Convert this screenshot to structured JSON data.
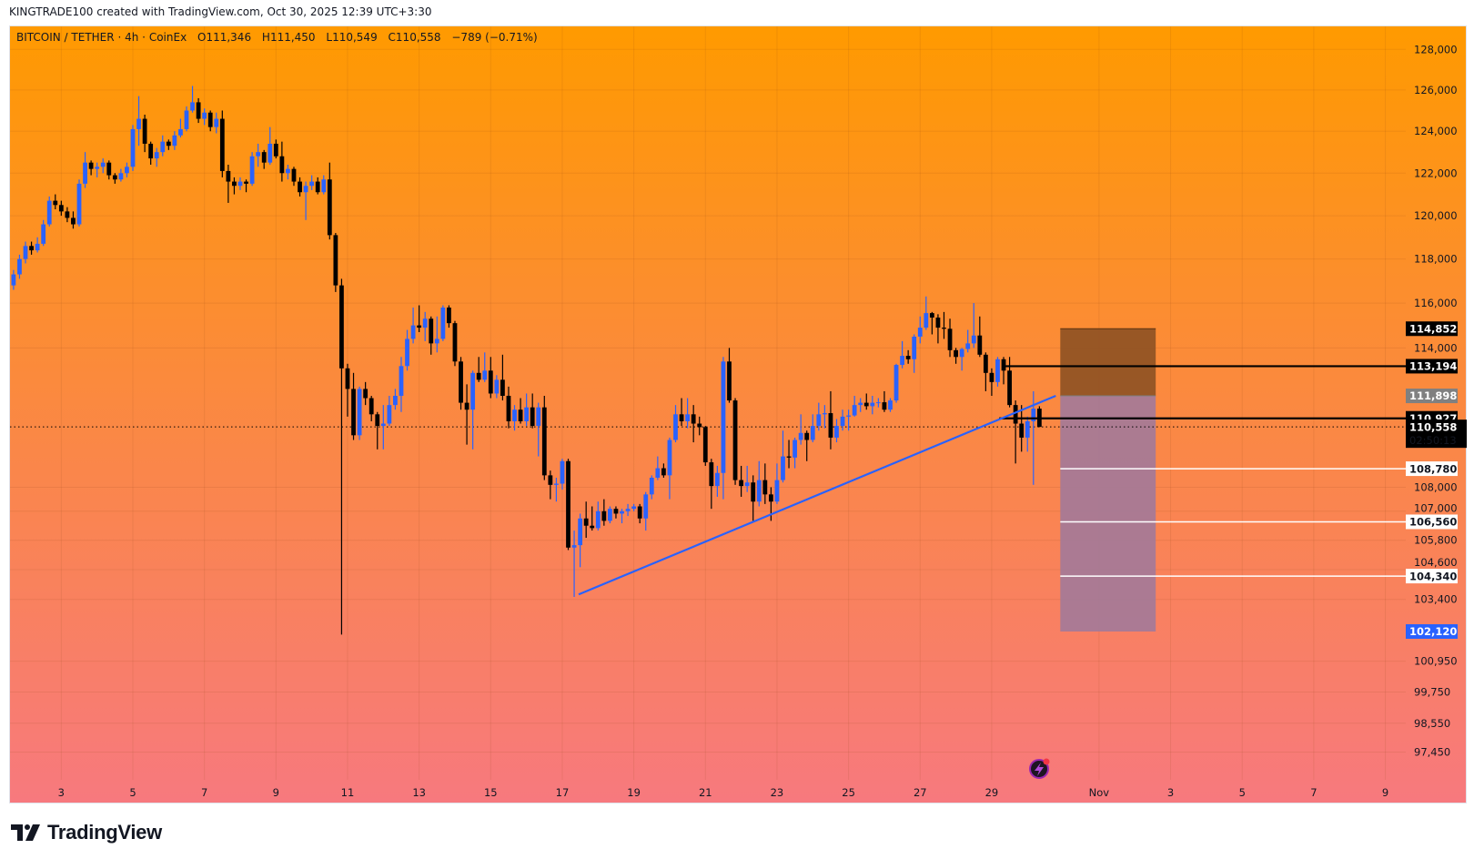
{
  "header": {
    "credit": "KINGTRADE100 created with TradingView.com, Oct 30, 2025 12:39 UTC+3:30"
  },
  "legend": {
    "symbol": "BITCOIN / TETHER",
    "interval": "4h",
    "exchange": "CoinEx",
    "separator": "·",
    "open_label": "O",
    "open": "111,346",
    "high_label": "H",
    "high": "111,450",
    "low_label": "L",
    "low": "110,549",
    "close_label": "C",
    "close": "110,558",
    "change": "−789 (−0.71%)"
  },
  "colors": {
    "up": "#2962ff",
    "down": "#000000",
    "background_top": "#ff9a00",
    "background_bottom": "#f7797e",
    "trendline": "#2962ff",
    "stop_zone": "#8f5224",
    "target_zone": "#a47a98",
    "label_dark": "#000000",
    "label_gray": "#808080",
    "label_light": "#ffffff",
    "label_blue": "#2962ff",
    "alert_icon": "#9c27b0"
  },
  "chart_data": {
    "type": "candlestick",
    "title": "BITCOIN / TETHER · 4h · CoinEx",
    "y_scale": "log",
    "ylim": [
      96500,
      129000
    ],
    "grid": true,
    "first_candle_time": "2025-10-01T16:00",
    "interval_hours": 4,
    "candle_format": [
      "open",
      "high",
      "low",
      "close"
    ],
    "candles": [
      [
        116800,
        117500,
        116600,
        117300
      ],
      [
        117300,
        118200,
        117100,
        118000
      ],
      [
        118000,
        118800,
        117800,
        118600
      ],
      [
        118600,
        118800,
        118200,
        118400
      ],
      [
        118400,
        119000,
        118300,
        118700
      ],
      [
        118700,
        119800,
        118600,
        119600
      ],
      [
        119600,
        120900,
        119500,
        120700
      ],
      [
        120700,
        121000,
        120300,
        120500
      ],
      [
        120500,
        120700,
        120000,
        120200
      ],
      [
        120200,
        120400,
        119700,
        119900
      ],
      [
        119900,
        120200,
        119400,
        119600
      ],
      [
        119600,
        121700,
        119500,
        121500
      ],
      [
        121500,
        123000,
        121300,
        122500
      ],
      [
        122500,
        122600,
        121900,
        122200
      ],
      [
        122200,
        122500,
        121800,
        122300
      ],
      [
        122300,
        122700,
        122000,
        122500
      ],
      [
        122500,
        122600,
        121700,
        121900
      ],
      [
        121900,
        122000,
        121500,
        121700
      ],
      [
        121700,
        122200,
        121600,
        122000
      ],
      [
        122000,
        122500,
        121800,
        122300
      ],
      [
        122300,
        124300,
        122100,
        124100
      ],
      [
        124100,
        125700,
        123300,
        124600
      ],
      [
        124600,
        124800,
        123000,
        123400
      ],
      [
        123400,
        123500,
        122400,
        122700
      ],
      [
        122700,
        123200,
        122300,
        123000
      ],
      [
        123000,
        123800,
        122800,
        123500
      ],
      [
        123500,
        123600,
        123100,
        123300
      ],
      [
        123300,
        124000,
        123100,
        123800
      ],
      [
        123800,
        124600,
        123700,
        124100
      ],
      [
        124100,
        125200,
        124000,
        125000
      ],
      [
        125000,
        126200,
        124900,
        125400
      ],
      [
        125400,
        125600,
        124400,
        124600
      ],
      [
        124600,
        125100,
        124300,
        124900
      ],
      [
        124900,
        125000,
        124000,
        124200
      ],
      [
        124200,
        124900,
        123900,
        124600
      ],
      [
        124600,
        125000,
        121800,
        122100
      ],
      [
        122100,
        122400,
        120600,
        121600
      ],
      [
        121600,
        121800,
        121000,
        121400
      ],
      [
        121400,
        121800,
        121200,
        121600
      ],
      [
        121600,
        121700,
        121100,
        121500
      ],
      [
        121500,
        123000,
        121400,
        122800
      ],
      [
        122800,
        123400,
        122300,
        123000
      ],
      [
        123000,
        123100,
        122200,
        122500
      ],
      [
        122500,
        124200,
        122400,
        123400
      ],
      [
        123400,
        123600,
        122700,
        122800
      ],
      [
        122800,
        123500,
        121600,
        122000
      ],
      [
        122000,
        122400,
        121700,
        122200
      ],
      [
        122200,
        122300,
        121400,
        121600
      ],
      [
        121600,
        121800,
        120900,
        121100
      ],
      [
        121100,
        121600,
        119800,
        121400
      ],
      [
        121400,
        121900,
        121200,
        121600
      ],
      [
        121600,
        121800,
        121000,
        121100
      ],
      [
        121100,
        121900,
        121000,
        121700
      ],
      [
        121700,
        122500,
        118900,
        119100
      ],
      [
        119100,
        119200,
        116500,
        116800
      ],
      [
        116800,
        117100,
        102000,
        113100
      ],
      [
        113100,
        113300,
        111000,
        112200
      ],
      [
        112200,
        112900,
        110000,
        110200
      ],
      [
        110200,
        112300,
        110000,
        112200
      ],
      [
        112200,
        112500,
        111500,
        111800
      ],
      [
        111800,
        111900,
        110800,
        111100
      ],
      [
        111100,
        111200,
        109600,
        110600
      ],
      [
        110600,
        111500,
        109600,
        110700
      ],
      [
        110700,
        111900,
        110600,
        111500
      ],
      [
        111500,
        112200,
        111300,
        111900
      ],
      [
        111900,
        113600,
        111200,
        113200
      ],
      [
        113200,
        114800,
        113000,
        114400
      ],
      [
        114400,
        115800,
        114200,
        115000
      ],
      [
        115000,
        115900,
        114700,
        114900
      ],
      [
        114900,
        115600,
        114300,
        115300
      ],
      [
        115300,
        115400,
        113700,
        114200
      ],
      [
        114200,
        115400,
        113800,
        114400
      ],
      [
        114400,
        115900,
        114300,
        115800
      ],
      [
        115800,
        115900,
        114900,
        115100
      ],
      [
        115100,
        115200,
        113200,
        113400
      ],
      [
        113400,
        113600,
        111300,
        111600
      ],
      [
        111600,
        112400,
        109800,
        111300
      ],
      [
        111300,
        113000,
        109600,
        112900
      ],
      [
        112900,
        113600,
        112500,
        112600
      ],
      [
        112600,
        113800,
        112500,
        113000
      ],
      [
        113000,
        113600,
        111800,
        112000
      ],
      [
        112000,
        112800,
        111800,
        112600
      ],
      [
        112600,
        113700,
        111700,
        111900
      ],
      [
        111900,
        112300,
        110500,
        110800
      ],
      [
        110800,
        111500,
        110400,
        111300
      ],
      [
        111300,
        111800,
        110700,
        110800
      ],
      [
        110800,
        112000,
        110600,
        111400
      ],
      [
        111400,
        112000,
        110500,
        110600
      ],
      [
        110600,
        111600,
        109300,
        111400
      ],
      [
        111400,
        111900,
        108300,
        108500
      ],
      [
        108500,
        108700,
        107500,
        108100
      ],
      [
        108100,
        108400,
        107400,
        108150
      ],
      [
        108150,
        109200,
        107900,
        109100
      ],
      [
        109100,
        109200,
        105400,
        105500
      ],
      [
        105500,
        106200,
        103500,
        105600
      ],
      [
        105600,
        106900,
        104700,
        106700
      ],
      [
        106700,
        107400,
        105900,
        106400
      ],
      [
        106400,
        107200,
        106200,
        106300
      ],
      [
        106300,
        107400,
        106200,
        107000
      ],
      [
        107000,
        107500,
        106400,
        106600
      ],
      [
        106600,
        107200,
        106500,
        107100
      ],
      [
        107100,
        107200,
        106700,
        106900
      ],
      [
        106900,
        107100,
        106500,
        107000
      ],
      [
        107000,
        107300,
        106800,
        107100
      ],
      [
        107100,
        107300,
        107000,
        107200
      ],
      [
        107200,
        107300,
        106500,
        106700
      ],
      [
        106700,
        107800,
        106200,
        107700
      ],
      [
        107700,
        108500,
        107500,
        108400
      ],
      [
        108400,
        109300,
        108300,
        108800
      ],
      [
        108800,
        109000,
        108400,
        108500
      ],
      [
        108500,
        110100,
        107500,
        110000
      ],
      [
        110000,
        111500,
        109900,
        111100
      ],
      [
        111100,
        111800,
        110600,
        110800
      ],
      [
        110800,
        111800,
        110500,
        111100
      ],
      [
        111100,
        111500,
        109900,
        110700
      ],
      [
        110700,
        111000,
        110200,
        110550
      ],
      [
        110550,
        110600,
        108900,
        109050
      ],
      [
        109050,
        109200,
        107100,
        108050
      ],
      [
        108050,
        108900,
        107600,
        108600
      ],
      [
        108600,
        113600,
        107500,
        113400
      ],
      [
        113400,
        114000,
        111600,
        111700
      ],
      [
        111700,
        111800,
        108100,
        108300
      ],
      [
        108300,
        108900,
        107600,
        108050
      ],
      [
        108050,
        108900,
        107800,
        108200
      ],
      [
        108200,
        108500,
        106600,
        107400
      ],
      [
        107400,
        109100,
        107200,
        108300
      ],
      [
        108300,
        109000,
        107300,
        107700
      ],
      [
        107700,
        108000,
        106600,
        107400
      ],
      [
        107400,
        109000,
        107300,
        108300
      ],
      [
        108300,
        110400,
        108200,
        109300
      ],
      [
        109300,
        110000,
        108800,
        109250
      ],
      [
        109250,
        110100,
        108800,
        110000
      ],
      [
        110000,
        111100,
        109800,
        110300
      ],
      [
        110300,
        110400,
        109100,
        110000
      ],
      [
        110000,
        111100,
        109900,
        110600
      ],
      [
        110600,
        111600,
        110400,
        111100
      ],
      [
        111100,
        111500,
        110500,
        111150
      ],
      [
        111150,
        112100,
        109600,
        110100
      ],
      [
        110100,
        110900,
        109900,
        110600
      ],
      [
        110600,
        111300,
        110400,
        111000
      ],
      [
        111000,
        111300,
        110400,
        111050
      ],
      [
        111050,
        111900,
        111000,
        111500
      ],
      [
        111500,
        111800,
        111200,
        111600
      ],
      [
        111600,
        112000,
        111300,
        111450
      ],
      [
        111450,
        111900,
        111100,
        111600
      ],
      [
        111600,
        111800,
        111400,
        111620
      ],
      [
        111620,
        112100,
        111200,
        111300
      ],
      [
        111300,
        111800,
        111200,
        111700
      ],
      [
        111700,
        113300,
        111600,
        113250
      ],
      [
        113250,
        114300,
        113100,
        113650
      ],
      [
        113650,
        113900,
        113300,
        113500
      ],
      [
        113500,
        114600,
        112900,
        114500
      ],
      [
        114500,
        115400,
        114200,
        114900
      ],
      [
        114900,
        116300,
        114800,
        115550
      ],
      [
        115550,
        115600,
        114600,
        115350
      ],
      [
        115350,
        115500,
        114200,
        114900
      ],
      [
        114900,
        115600,
        114400,
        114850
      ],
      [
        114850,
        115300,
        113600,
        113900
      ],
      [
        113900,
        114000,
        113300,
        113600
      ],
      [
        113600,
        114000,
        113000,
        113950
      ],
      [
        113950,
        114800,
        113800,
        114200
      ],
      [
        114200,
        116000,
        114000,
        114550
      ],
      [
        114550,
        115400,
        113600,
        113700
      ],
      [
        113700,
        113800,
        112100,
        112900
      ],
      [
        112900,
        113100,
        111900,
        112500
      ],
      [
        112500,
        113600,
        112300,
        113500
      ],
      [
        113500,
        113600,
        112400,
        113000
      ],
      [
        113000,
        113600,
        111400,
        111500
      ],
      [
        111500,
        111700,
        109000,
        110700
      ],
      [
        110700,
        111500,
        109500,
        110100
      ],
      [
        110100,
        111000,
        109500,
        110800
      ],
      [
        110800,
        112100,
        108100,
        111346
      ],
      [
        111346,
        111450,
        110549,
        110558
      ]
    ],
    "y_ticks": [
      {
        "value": 128000,
        "label": "128,000"
      },
      {
        "value": 126000,
        "label": "126,000"
      },
      {
        "value": 124000,
        "label": "124,000"
      },
      {
        "value": 122000,
        "label": "122,000"
      },
      {
        "value": 120000,
        "label": "120,000"
      },
      {
        "value": 118000,
        "label": "118,000"
      },
      {
        "value": 116000,
        "label": "116,000"
      },
      {
        "value": 114000,
        "label": "114,000"
      },
      {
        "value": 108000,
        "label": "108,000"
      },
      {
        "value": 107000,
        "label": "107,000"
      },
      {
        "value": 105800,
        "label": "105,800"
      },
      {
        "value": 104600,
        "label": "104,600"
      },
      {
        "value": 103400,
        "label": "103,400"
      },
      {
        "value": 100950,
        "label": "100,950"
      },
      {
        "value": 99750,
        "label": "99,750"
      },
      {
        "value": 98550,
        "label": "98,550"
      },
      {
        "value": 97450,
        "label": "97,450"
      }
    ],
    "x_ticks": [
      {
        "date": "2025-10-03",
        "label": "3"
      },
      {
        "date": "2025-10-05",
        "label": "5"
      },
      {
        "date": "2025-10-07",
        "label": "7"
      },
      {
        "date": "2025-10-09",
        "label": "9"
      },
      {
        "date": "2025-10-11",
        "label": "11"
      },
      {
        "date": "2025-10-13",
        "label": "13"
      },
      {
        "date": "2025-10-15",
        "label": "15"
      },
      {
        "date": "2025-10-17",
        "label": "17"
      },
      {
        "date": "2025-10-19",
        "label": "19"
      },
      {
        "date": "2025-10-21",
        "label": "21"
      },
      {
        "date": "2025-10-23",
        "label": "23"
      },
      {
        "date": "2025-10-25",
        "label": "25"
      },
      {
        "date": "2025-10-27",
        "label": "27"
      },
      {
        "date": "2025-10-29",
        "label": "29"
      },
      {
        "date": "2025-11-01",
        "label": "Nov"
      },
      {
        "date": "2025-11-03",
        "label": "3"
      },
      {
        "date": "2025-11-05",
        "label": "5"
      },
      {
        "date": "2025-11-07",
        "label": "7"
      },
      {
        "date": "2025-11-09",
        "label": "9"
      }
    ],
    "last_price": {
      "value": 110558,
      "label": "110,558",
      "countdown": "02:50:13"
    },
    "price_labels": [
      {
        "value": 114852,
        "label": "114,852",
        "style": "dark"
      },
      {
        "value": 113194,
        "label": "113,194",
        "style": "dark"
      },
      {
        "value": 111898,
        "label": "111,898",
        "style": "gray"
      },
      {
        "value": 110927,
        "label": "110,927",
        "style": "dark"
      },
      {
        "value": 108780,
        "label": "108,780",
        "style": "light"
      },
      {
        "value": 106560,
        "label": "106,560",
        "style": "light"
      },
      {
        "value": 104340,
        "label": "104,340",
        "style": "light"
      },
      {
        "value": 102120,
        "label": "102,120",
        "style": "blue"
      }
    ],
    "drawings": {
      "trendline": {
        "start": {
          "time": "2025-10-17T11:00",
          "price": 103600
        },
        "end": {
          "time": "2025-10-30T19:00",
          "price": 111900
        }
      },
      "horizontal_lines": [
        {
          "price": 113194,
          "from_time": "2025-10-29T09:00",
          "color": "#000000"
        },
        {
          "price": 110927,
          "from_time": "2025-10-29T05:00",
          "color": "#000000"
        },
        {
          "price": 108780,
          "from_time": "2025-10-30T22:00",
          "color": "#ffffff"
        },
        {
          "price": 106560,
          "from_time": "2025-10-30T22:00",
          "color": "#ffffff"
        },
        {
          "price": 104340,
          "from_time": "2025-10-30T22:00",
          "color": "#ffffff"
        }
      ],
      "short_position": {
        "entry": 111898,
        "stop": 114852,
        "target": 102120,
        "start_time": "2025-10-30T22:00",
        "end_time": "2025-11-02T14:00"
      }
    }
  },
  "alert_icon": "lightning-alert-icon",
  "footer": {
    "brand": "TradingView",
    "logo_icon": "tradingview-logo-icon"
  }
}
